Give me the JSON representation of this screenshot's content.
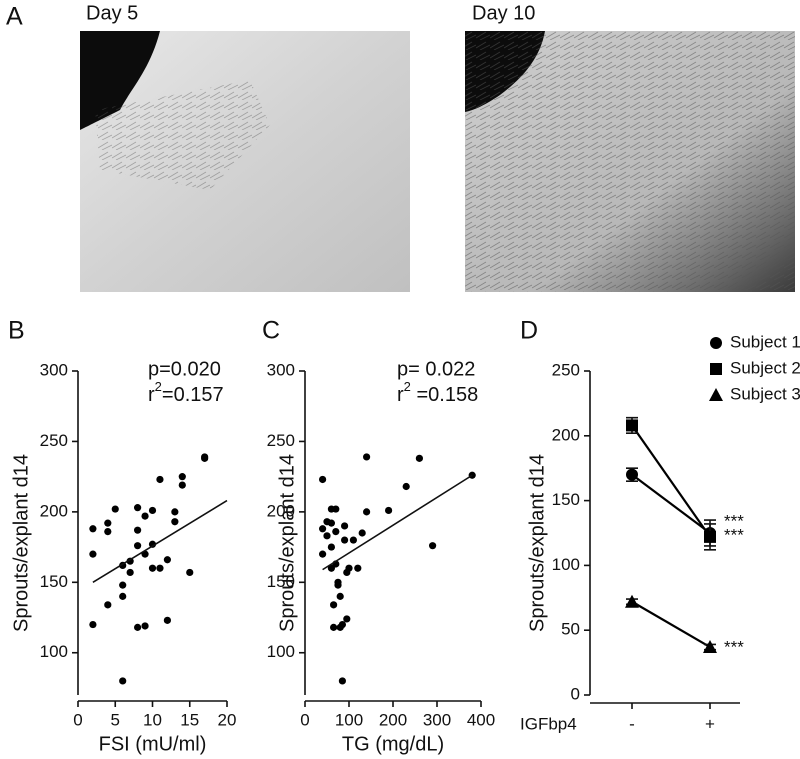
{
  "figure": {
    "panel": "A",
    "photos": [
      "Day 5",
      "Day 10"
    ]
  },
  "chart_data": [
    {
      "type": "scatter",
      "panel": "B",
      "x_label": "FSI (mU/ml)",
      "y_label": "Sprouts/explant d14",
      "stats": {
        "p": "p=0.020",
        "r2": [
          "r",
          "2",
          "=0.157"
        ]
      },
      "xlim": [
        0,
        20
      ],
      "xticks": [
        0,
        5,
        10,
        15,
        20
      ],
      "ylim": [
        70,
        300
      ],
      "yticks": [
        100,
        150,
        200,
        250,
        300
      ],
      "color": "#000000",
      "x": [
        2,
        2,
        2,
        4,
        4,
        4,
        5,
        6,
        6,
        6,
        6,
        7,
        7,
        8,
        8,
        8,
        8,
        9,
        9,
        9,
        10,
        10,
        10,
        11,
        11,
        12,
        12,
        13,
        13,
        14,
        14,
        15,
        17,
        17
      ],
      "values": [
        188,
        170,
        120,
        186,
        192,
        134,
        202,
        162,
        148,
        140,
        80,
        165,
        157,
        203,
        176,
        187,
        118,
        197,
        119,
        170,
        201,
        160,
        177,
        223,
        160,
        166,
        123,
        200,
        193,
        225,
        219,
        157,
        238,
        239
      ],
      "fit_line": {
        "x": [
          2,
          20
        ],
        "y": [
          150,
          208
        ]
      }
    },
    {
      "type": "scatter",
      "panel": "C",
      "x_label": "TG (mg/dL)",
      "y_label": "Sprouts/explant d14",
      "stats": {
        "p": "p= 0.022",
        "r2": [
          "r",
          "2",
          " =0.158"
        ]
      },
      "xlim": [
        0,
        400
      ],
      "xticks": [
        0,
        100,
        200,
        300,
        400
      ],
      "ylim": [
        70,
        300
      ],
      "yticks": [
        100,
        150,
        200,
        250,
        300
      ],
      "color": "#000000",
      "x": [
        40,
        40,
        40,
        50,
        50,
        60,
        60,
        60,
        60,
        65,
        65,
        70,
        70,
        70,
        75,
        75,
        80,
        80,
        85,
        85,
        90,
        90,
        95,
        95,
        100,
        110,
        120,
        130,
        140,
        140,
        190,
        230,
        260,
        290,
        380
      ],
      "values": [
        223,
        188,
        170,
        193,
        183,
        202,
        192,
        175,
        160,
        134,
        118,
        202,
        186,
        163,
        150,
        148,
        118,
        140,
        120,
        80,
        190,
        180,
        157,
        124,
        160,
        180,
        160,
        185,
        239,
        200,
        201,
        218,
        238,
        176,
        226
      ],
      "fit_line": {
        "x": [
          40,
          380
        ],
        "y": [
          159,
          226
        ]
      }
    },
    {
      "type": "line",
      "panel": "D",
      "y_label": "Sprouts/explant d14",
      "x_label": "IGFbp4",
      "categories": [
        "-",
        "+"
      ],
      "ylim": [
        0,
        250
      ],
      "yticks": [
        0,
        50,
        100,
        150,
        200,
        250
      ],
      "series": [
        {
          "name": "Subject 1",
          "color": "#000000",
          "marker": "circle",
          "values": [
            170,
            125
          ],
          "errors": [
            5,
            10
          ],
          "significance": "***"
        },
        {
          "name": "Subject 2",
          "color": "#000000",
          "marker": "square",
          "values": [
            208,
            122
          ],
          "errors": [
            6,
            10
          ],
          "significance": "***"
        },
        {
          "name": "Subject 3",
          "color": "#000000",
          "marker": "triangle",
          "values": [
            72,
            37
          ],
          "errors": [
            2,
            2
          ],
          "significance": "***"
        }
      ]
    }
  ]
}
